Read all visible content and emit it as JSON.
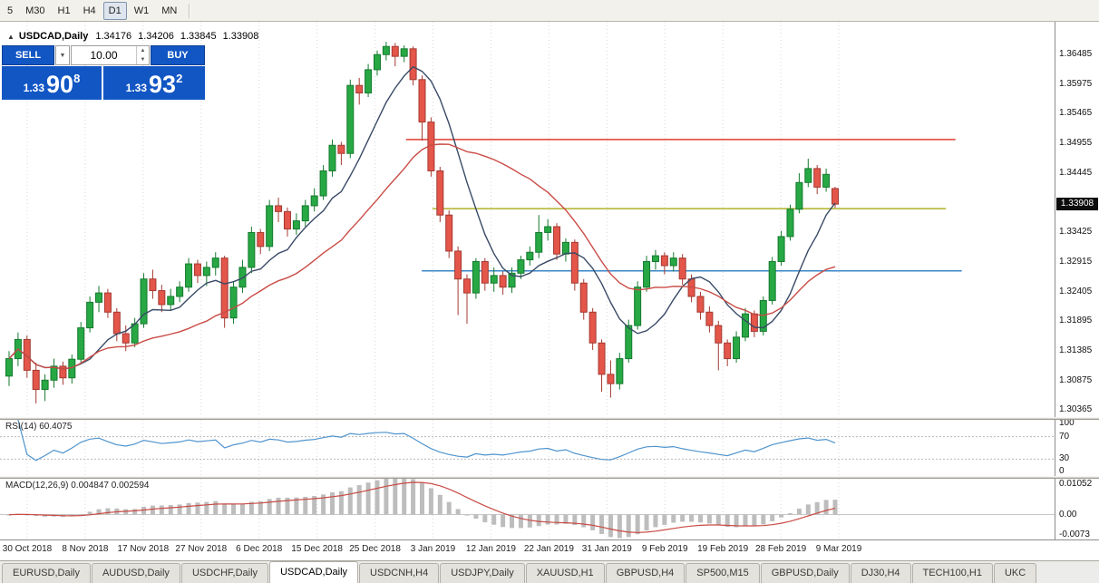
{
  "toolbar": {
    "timeframes": [
      {
        "label": "5",
        "active": false
      },
      {
        "label": "M30",
        "active": false
      },
      {
        "label": "H1",
        "active": false
      },
      {
        "label": "H4",
        "active": false
      },
      {
        "label": "D1",
        "active": true
      },
      {
        "label": "W1",
        "active": false
      },
      {
        "label": "MN",
        "active": false
      }
    ]
  },
  "icons": {
    "panel_toggle": "▲",
    "dropdown": "▼",
    "spin_up": "▲",
    "spin_down": "▼"
  },
  "chart": {
    "title": "USDCAD,Daily",
    "ohlc": {
      "open": "1.34176",
      "high": "1.34206",
      "low": "1.33845",
      "close": "1.33908"
    },
    "trade_panel": {
      "sell_label": "SELL",
      "buy_label": "BUY",
      "volume": "10.00",
      "bid": "1.33908",
      "ask": "1.33932",
      "bid_small": "1.33",
      "bid_big": "90",
      "bid_sup": "8",
      "ask_small": "1.33",
      "ask_big": "93",
      "ask_sup": "2"
    },
    "price_tag": "1.33908",
    "price_axis": [
      "1.36485",
      "1.35975",
      "1.35465",
      "1.34955",
      "1.34445",
      "1.33935",
      "1.33425",
      "1.32915",
      "1.32405",
      "1.31895",
      "1.31385",
      "1.30875",
      "1.30365"
    ],
    "date_axis": [
      "30 Oct 2018",
      "8 Nov 2018",
      "17 Nov 2018",
      "27 Nov 2018",
      "6 Dec 2018",
      "15 Dec 2018",
      "25 Dec 2018",
      "3 Jan 2019",
      "12 Jan 2019",
      "22 Jan 2019",
      "31 Jan 2019",
      "9 Feb 2019",
      "19 Feb 2019",
      "28 Feb 2019",
      "9 Mar 2019"
    ]
  },
  "indicators": {
    "rsi": {
      "label": "RSI(14) 60.4075",
      "period": 14,
      "levels": [
        "100",
        "70",
        "30",
        "0"
      ],
      "level_lines": [
        70,
        30
      ]
    },
    "macd": {
      "label": "MACD(12,26,9) 0.004847 0.002594",
      "fast": 12,
      "slow": 26,
      "signal": 9,
      "axis": [
        "0.01052",
        "0.00",
        "-0.0073"
      ]
    }
  },
  "tabs": [
    {
      "label": "EURUSD,Daily",
      "active": false
    },
    {
      "label": "AUDUSD,Daily",
      "active": false
    },
    {
      "label": "USDCHF,Daily",
      "active": false
    },
    {
      "label": "USDCAD,Daily",
      "active": true
    },
    {
      "label": "USDCNH,H4",
      "active": false
    },
    {
      "label": "USDJPY,Daily",
      "active": false
    },
    {
      "label": "XAUUSD,H1",
      "active": false
    },
    {
      "label": "GBPUSD,H4",
      "active": false
    },
    {
      "label": "SP500,M15",
      "active": false
    },
    {
      "label": "GBPUSD,Daily",
      "active": false
    },
    {
      "label": "DJ30,H4",
      "active": false
    },
    {
      "label": "TECH100,H1",
      "active": false
    },
    {
      "label": "UKC",
      "active": false
    }
  ],
  "colors": {
    "up": "#27a844",
    "up_border": "#157a2e",
    "down": "#e4554a",
    "down_border": "#a33a31",
    "ma_fast": "#394a66",
    "ma_slow": "#c94b45",
    "rsi": "#4f94cd",
    "macd_hist": "#bdbdbd",
    "macd_signal": "#c94b45",
    "panel_blue": "#1256c4",
    "grid": "#d8d8d8",
    "level_dotted": "#b8b8b8",
    "zero_line": "#c8c8c8"
  },
  "chart_data": {
    "type": "candlestick",
    "symbol": "USDCAD",
    "timeframe": "Daily",
    "price_range": [
      1.30245,
      1.37045
    ],
    "macd_range": [
      -0.0073,
      0.01052
    ],
    "rsi_range": [
      0,
      100
    ],
    "overlays": {
      "ma_fast": {
        "kind": "sma",
        "period": 8,
        "color": "#394a66"
      },
      "ma_slow": {
        "kind": "sma",
        "period": 21,
        "color": "#c94b45"
      }
    },
    "hlines": [
      {
        "price": 1.3502,
        "color": "#e03c31",
        "x1": 0.385,
        "x2": 0.906
      },
      {
        "price": 1.3383,
        "color": "#b0b02a",
        "x1": 0.41,
        "x2": 0.897
      },
      {
        "price": 1.3276,
        "color": "#3a87c8",
        "x1": 0.4,
        "x2": 0.912
      }
    ],
    "candles": [
      [
        1.3095,
        1.3138,
        1.3078,
        1.3125
      ],
      [
        1.3125,
        1.317,
        1.3112,
        1.3158
      ],
      [
        1.3158,
        1.3165,
        1.3092,
        1.3105
      ],
      [
        1.3105,
        1.3118,
        1.3048,
        1.3072
      ],
      [
        1.3072,
        1.3098,
        1.3052,
        1.3088
      ],
      [
        1.3088,
        1.3125,
        1.3075,
        1.3112
      ],
      [
        1.3112,
        1.312,
        1.308,
        1.3092
      ],
      [
        1.3092,
        1.3132,
        1.3082,
        1.3124
      ],
      [
        1.3124,
        1.3188,
        1.3115,
        1.3178
      ],
      [
        1.3178,
        1.3232,
        1.317,
        1.3222
      ],
      [
        1.3222,
        1.325,
        1.3205,
        1.3238
      ],
      [
        1.3238,
        1.3245,
        1.3195,
        1.3205
      ],
      [
        1.3205,
        1.3212,
        1.3155,
        1.3168
      ],
      [
        1.3168,
        1.3182,
        1.3138,
        1.3152
      ],
      [
        1.3152,
        1.3195,
        1.3145,
        1.3185
      ],
      [
        1.3185,
        1.3272,
        1.3178,
        1.3262
      ],
      [
        1.3262,
        1.3278,
        1.3228,
        1.3242
      ],
      [
        1.3242,
        1.3252,
        1.3205,
        1.3218
      ],
      [
        1.3218,
        1.3245,
        1.3208,
        1.3232
      ],
      [
        1.3232,
        1.3258,
        1.3222,
        1.3248
      ],
      [
        1.3248,
        1.3298,
        1.324,
        1.3288
      ],
      [
        1.3288,
        1.3295,
        1.3255,
        1.3268
      ],
      [
        1.3268,
        1.3292,
        1.325,
        1.3282
      ],
      [
        1.3282,
        1.3308,
        1.3268,
        1.3298
      ],
      [
        1.3298,
        1.3302,
        1.3178,
        1.3195
      ],
      [
        1.3195,
        1.3258,
        1.3185,
        1.3248
      ],
      [
        1.3248,
        1.3295,
        1.3238,
        1.3282
      ],
      [
        1.3282,
        1.3352,
        1.3272,
        1.3342
      ],
      [
        1.3342,
        1.3348,
        1.3305,
        1.3318
      ],
      [
        1.3318,
        1.3398,
        1.331,
        1.3388
      ],
      [
        1.3388,
        1.3402,
        1.336,
        1.3378
      ],
      [
        1.3378,
        1.3385,
        1.3335,
        1.3348
      ],
      [
        1.3348,
        1.3375,
        1.3338,
        1.3362
      ],
      [
        1.3362,
        1.3398,
        1.3352,
        1.3388
      ],
      [
        1.3388,
        1.3418,
        1.3378,
        1.3405
      ],
      [
        1.3405,
        1.3458,
        1.3398,
        1.3448
      ],
      [
        1.3448,
        1.3502,
        1.3438,
        1.3492
      ],
      [
        1.3492,
        1.3498,
        1.3458,
        1.3478
      ],
      [
        1.3478,
        1.3605,
        1.347,
        1.3595
      ],
      [
        1.3595,
        1.3608,
        1.3562,
        1.3582
      ],
      [
        1.3582,
        1.3632,
        1.3575,
        1.3622
      ],
      [
        1.3622,
        1.3655,
        1.3612,
        1.3648
      ],
      [
        1.3648,
        1.367,
        1.3638,
        1.3662
      ],
      [
        1.3662,
        1.3668,
        1.3628,
        1.3645
      ],
      [
        1.3645,
        1.3664,
        1.3635,
        1.3658
      ],
      [
        1.3658,
        1.3662,
        1.3595,
        1.3605
      ],
      [
        1.3605,
        1.3612,
        1.35,
        1.3532
      ],
      [
        1.3532,
        1.354,
        1.3438,
        1.3448
      ],
      [
        1.3448,
        1.3455,
        1.336,
        1.3372
      ],
      [
        1.3372,
        1.338,
        1.3298,
        1.331
      ],
      [
        1.331,
        1.3318,
        1.32,
        1.3262
      ],
      [
        1.3262,
        1.327,
        1.3185,
        1.3238
      ],
      [
        1.3238,
        1.3298,
        1.3228,
        1.3292
      ],
      [
        1.3292,
        1.3298,
        1.3242,
        1.3255
      ],
      [
        1.3255,
        1.3282,
        1.324,
        1.3268
      ],
      [
        1.3268,
        1.3275,
        1.3235,
        1.3248
      ],
      [
        1.3248,
        1.3282,
        1.3238,
        1.3272
      ],
      [
        1.3272,
        1.3302,
        1.3262,
        1.3295
      ],
      [
        1.3295,
        1.3318,
        1.3285,
        1.3308
      ],
      [
        1.3308,
        1.3372,
        1.3298,
        1.3342
      ],
      [
        1.3342,
        1.3365,
        1.3328,
        1.3352
      ],
      [
        1.3352,
        1.3358,
        1.3295,
        1.3305
      ],
      [
        1.3305,
        1.3332,
        1.3292,
        1.3325
      ],
      [
        1.3325,
        1.333,
        1.3242,
        1.3255
      ],
      [
        1.3255,
        1.3262,
        1.3192,
        1.3205
      ],
      [
        1.3205,
        1.3212,
        1.314,
        1.3152
      ],
      [
        1.3152,
        1.3158,
        1.3068,
        1.3098
      ],
      [
        1.3098,
        1.3122,
        1.3058,
        1.3082
      ],
      [
        1.3082,
        1.3135,
        1.3072,
        1.3125
      ],
      [
        1.3125,
        1.3192,
        1.3118,
        1.3182
      ],
      [
        1.3182,
        1.3258,
        1.3175,
        1.3248
      ],
      [
        1.3248,
        1.3302,
        1.324,
        1.3292
      ],
      [
        1.3292,
        1.3312,
        1.3278,
        1.3302
      ],
      [
        1.3302,
        1.3308,
        1.327,
        1.3285
      ],
      [
        1.3285,
        1.3308,
        1.3275,
        1.3298
      ],
      [
        1.3298,
        1.3305,
        1.3252,
        1.3262
      ],
      [
        1.3262,
        1.327,
        1.3222,
        1.3232
      ],
      [
        1.3232,
        1.324,
        1.3192,
        1.3205
      ],
      [
        1.3205,
        1.3215,
        1.317,
        1.3182
      ],
      [
        1.3182,
        1.319,
        1.3105,
        1.3152
      ],
      [
        1.3152,
        1.3158,
        1.3112,
        1.3125
      ],
      [
        1.3125,
        1.3172,
        1.3118,
        1.3162
      ],
      [
        1.3162,
        1.3212,
        1.3155,
        1.3202
      ],
      [
        1.3202,
        1.3208,
        1.3162,
        1.3172
      ],
      [
        1.3172,
        1.3232,
        1.3165,
        1.3225
      ],
      [
        1.3225,
        1.33,
        1.3218,
        1.3292
      ],
      [
        1.3292,
        1.3345,
        1.3285,
        1.3335
      ],
      [
        1.3335,
        1.339,
        1.3328,
        1.3382
      ],
      [
        1.3382,
        1.3444,
        1.3375,
        1.3428
      ],
      [
        1.3428,
        1.3469,
        1.342,
        1.3452
      ],
      [
        1.3452,
        1.3458,
        1.3408,
        1.342
      ],
      [
        1.342,
        1.3452,
        1.3412,
        1.3442
      ],
      [
        1.34176,
        1.34206,
        1.33845,
        1.33908
      ]
    ]
  }
}
